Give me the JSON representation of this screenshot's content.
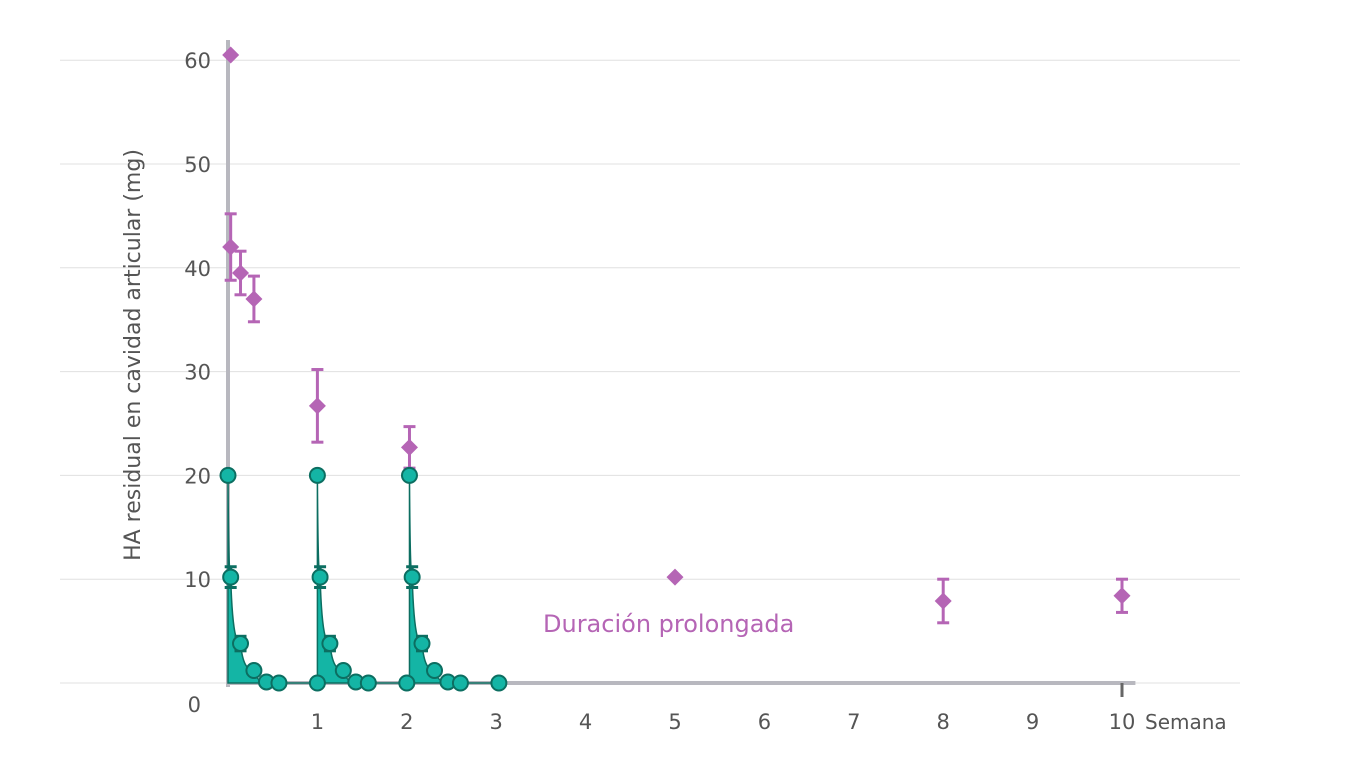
{
  "chart_data": {
    "type": "scatter",
    "title": "",
    "ylabel": "HA residual en cavidad articular (mg)",
    "xlabel": "Semana",
    "xlim": [
      0,
      11.6
    ],
    "ylim": [
      0,
      60
    ],
    "x_ticks": [
      1,
      2,
      3,
      4,
      5,
      6,
      7,
      8,
      9,
      10
    ],
    "y_ticks": [
      0,
      10,
      20,
      30,
      40,
      50,
      60
    ],
    "grid": "horizontal",
    "annotation": "Duración prolongada",
    "colors": {
      "prolonged": "#b565b5",
      "short": "#14b5a5",
      "short_stroke": "#0c6e61",
      "grid": "#e0e0e0",
      "axis": "#b8b8bf"
    },
    "series": [
      {
        "marker": "diamond",
        "points": [
          {
            "x": 0.03,
            "y": 60.5
          },
          {
            "x": 0.03,
            "y": 42.0,
            "err": 3.2
          },
          {
            "x": 0.14,
            "y": 39.5,
            "err": 2.1
          },
          {
            "x": 0.29,
            "y": 37.0,
            "err": 2.2
          },
          {
            "x": 1.0,
            "y": 26.7,
            "err": 3.5
          },
          {
            "x": 2.03,
            "y": 22.7,
            "err": 2.0
          },
          {
            "x": 5.0,
            "y": 10.2
          },
          {
            "x": 8.0,
            "y": 7.9,
            "err": 2.1
          },
          {
            "x": 10.0,
            "y": 8.4,
            "err": 1.6
          }
        ]
      },
      {
        "marker": "circle",
        "points": [
          {
            "x": 0.0,
            "y": 20.0
          },
          {
            "x": 0.03,
            "y": 10.2,
            "err": 1.0
          },
          {
            "x": 0.14,
            "y": 3.8,
            "err": 0.7
          },
          {
            "x": 0.29,
            "y": 1.2
          },
          {
            "x": 0.43,
            "y": 0.1
          },
          {
            "x": 0.57,
            "y": 0.0
          },
          {
            "x": 1.0,
            "y": 0.0
          },
          {
            "x": 1.0,
            "y": 20.0
          },
          {
            "x": 1.03,
            "y": 10.2,
            "err": 1.0
          },
          {
            "x": 1.14,
            "y": 3.8,
            "err": 0.7
          },
          {
            "x": 1.29,
            "y": 1.2
          },
          {
            "x": 1.43,
            "y": 0.1
          },
          {
            "x": 1.57,
            "y": 0.0
          },
          {
            "x": 2.0,
            "y": 0.0
          },
          {
            "x": 2.03,
            "y": 20.0
          },
          {
            "x": 2.06,
            "y": 10.2,
            "err": 1.0
          },
          {
            "x": 2.17,
            "y": 3.8,
            "err": 0.7
          },
          {
            "x": 2.31,
            "y": 1.2
          },
          {
            "x": 2.46,
            "y": 0.1
          },
          {
            "x": 2.6,
            "y": 0.0
          },
          {
            "x": 3.03,
            "y": 0.0
          }
        ]
      }
    ]
  }
}
